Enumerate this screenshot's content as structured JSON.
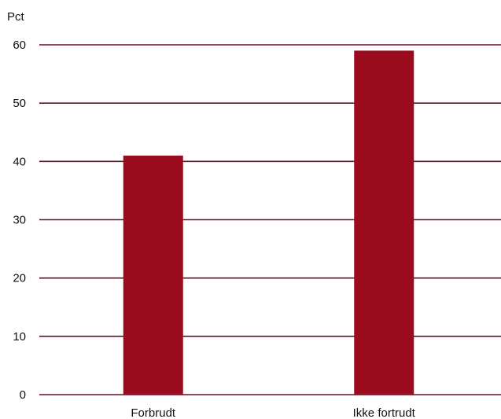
{
  "chart_data": {
    "type": "bar",
    "ylabel": "Pct",
    "categories": [
      "Forbrudt",
      "Ikke fortrudt"
    ],
    "values": [
      41,
      59
    ],
    "ylim": [
      0,
      60
    ],
    "yticks": [
      0,
      10,
      20,
      30,
      40,
      50,
      60
    ],
    "grid": true,
    "legend": "none",
    "bar_color": "#9b0b1e",
    "grid_color": "#6b0f1a"
  }
}
